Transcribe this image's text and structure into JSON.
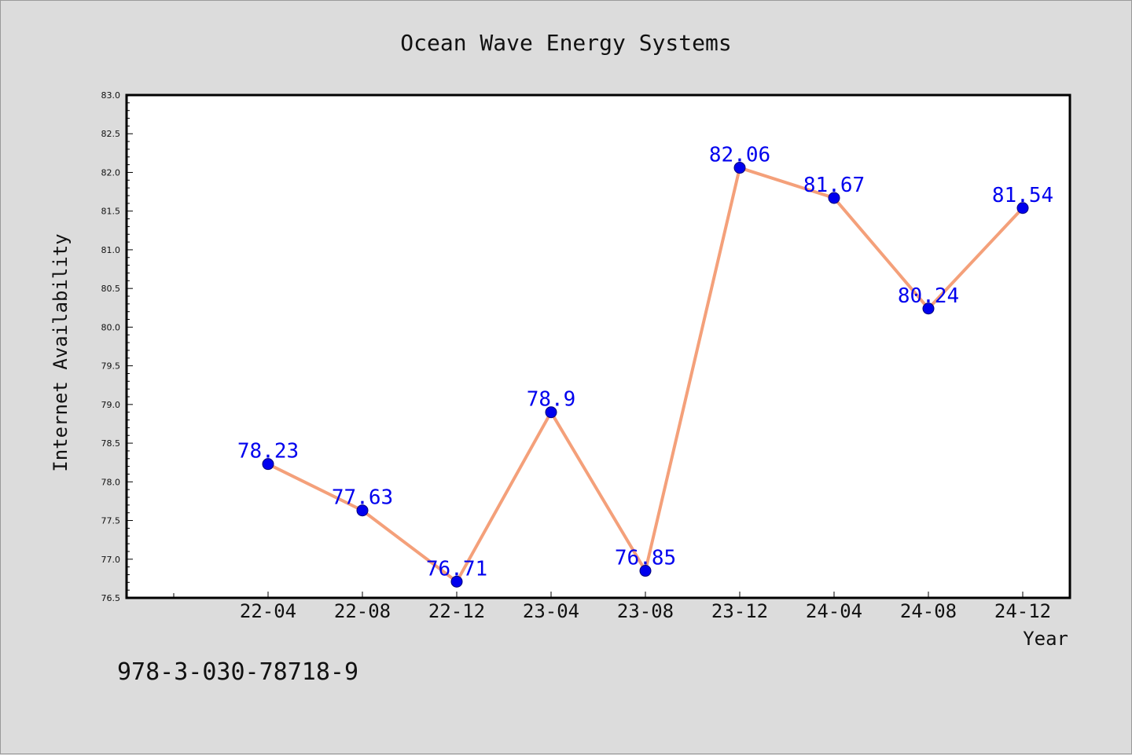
{
  "chart_data": {
    "type": "line",
    "title": "Ocean Wave Energy Systems",
    "xlabel": "Year",
    "ylabel": "Internet Availability",
    "categories": [
      "22-04",
      "22-08",
      "22-12",
      "23-04",
      "23-08",
      "23-12",
      "24-04",
      "24-08",
      "24-12"
    ],
    "series": [
      {
        "values": [
          78.23,
          77.63,
          76.71,
          78.9,
          76.85,
          82.06,
          81.67,
          80.24,
          81.54
        ]
      }
    ],
    "data_labels": [
      "78.23",
      "77.63",
      "76.71",
      "78.9",
      "76.85",
      "82.06",
      "81.67",
      "80.24",
      "81.54"
    ],
    "ylim": [
      76.5,
      83.0
    ],
    "yticks": [
      "76.5",
      "77.0",
      "77.5",
      "78.0",
      "78.5",
      "79.0",
      "79.5",
      "80.0",
      "80.5",
      "81.0",
      "81.5",
      "82.0",
      "82.5",
      "83.0"
    ],
    "grid": false,
    "colors": {
      "line": "#f4a07a",
      "marker": "#0000ee",
      "label": "#0000ee",
      "plot_bg": "#ffffff",
      "page_bg": "#dcdcdc"
    }
  },
  "footnote": "978-3-030-78718-9"
}
